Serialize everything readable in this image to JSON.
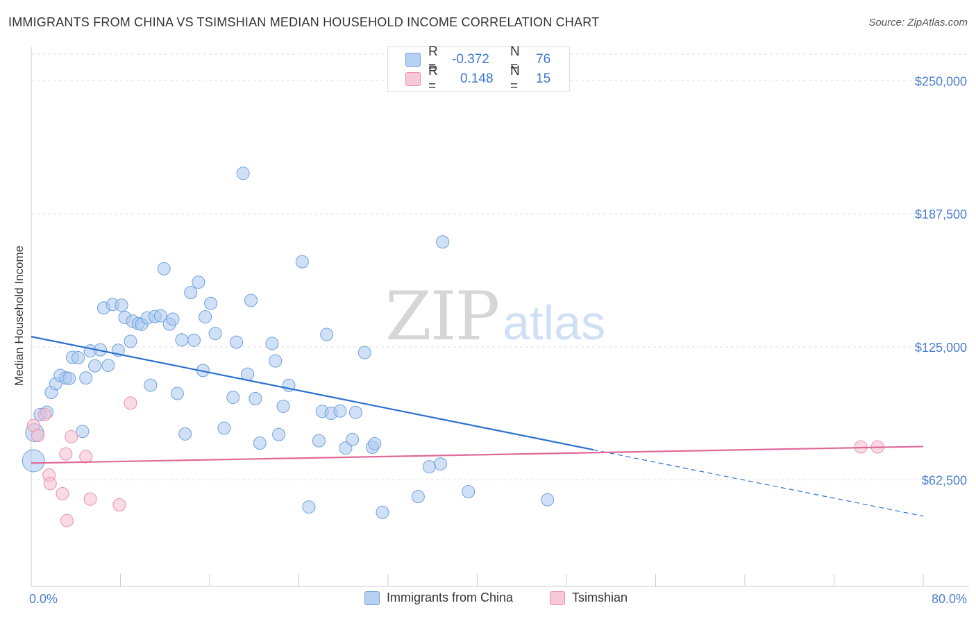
{
  "header": {
    "title": "IMMIGRANTS FROM CHINA VS TSIMSHIAN MEDIAN HOUSEHOLD INCOME CORRELATION CHART",
    "source": "Source: ZipAtlas.com"
  },
  "watermark": {
    "zip": "ZIP",
    "atlas": "atlas"
  },
  "legend_top": {
    "rows": [
      {
        "r_label": "R =",
        "r_value": "-0.372",
        "n_label": "N =",
        "n_value": "76"
      },
      {
        "r_label": "R =",
        "r_value": "0.148",
        "n_label": "N =",
        "n_value": "15"
      }
    ]
  },
  "legend_bottom": {
    "items": [
      {
        "label": "Immigrants from China"
      },
      {
        "label": "Tsimshian"
      }
    ]
  },
  "colors": {
    "china_fill": "#a9c8f0",
    "china_stroke": "#6fa0dd",
    "china_line": "#2a6fcf",
    "tsim_fill": "#f6bdd0",
    "tsim_stroke": "#ea8fae",
    "tsim_line": "#e0699a",
    "tick": "#4a7fd0",
    "grid": "#dddddd"
  },
  "chart_data": {
    "type": "scatter",
    "title": "IMMIGRANTS FROM CHINA VS TSIMSHIAN MEDIAN HOUSEHOLD INCOME CORRELATION CHART",
    "xlabel": "",
    "ylabel": "Median Household Income",
    "xlim": [
      0,
      80
    ],
    "ylim": [
      12500,
      262500
    ],
    "x_tick_labels": [
      "0.0%",
      "80.0%"
    ],
    "y_ticks": [
      62500,
      125000,
      187500,
      250000
    ],
    "y_tick_labels": [
      "$62,500",
      "$125,000",
      "$187,500",
      "$250,000"
    ],
    "grid": true,
    "legend_placement": "top-center",
    "series": [
      {
        "name": "Immigrants from China",
        "r": -0.372,
        "n": 76,
        "trend": {
          "x0": 0,
          "y0": 129800,
          "x1": 80,
          "y1": 45500,
          "solid_until_x": 50.4
        },
        "points": [
          {
            "x": 0.2,
            "y": 71500,
            "s": 3
          },
          {
            "x": 0.3,
            "y": 84700,
            "s": 2
          },
          {
            "x": 0.8,
            "y": 93200
          },
          {
            "x": 1.4,
            "y": 94300
          },
          {
            "x": 1.8,
            "y": 103600
          },
          {
            "x": 2.2,
            "y": 107700
          },
          {
            "x": 2.6,
            "y": 111600
          },
          {
            "x": 3.1,
            "y": 110400
          },
          {
            "x": 3.4,
            "y": 110200
          },
          {
            "x": 3.7,
            "y": 120100
          },
          {
            "x": 4.2,
            "y": 119900
          },
          {
            "x": 4.6,
            "y": 85300
          },
          {
            "x": 4.9,
            "y": 110400
          },
          {
            "x": 5.3,
            "y": 123100
          },
          {
            "x": 5.7,
            "y": 116100
          },
          {
            "x": 6.2,
            "y": 123600
          },
          {
            "x": 6.5,
            "y": 143300
          },
          {
            "x": 6.9,
            "y": 116300
          },
          {
            "x": 7.3,
            "y": 144900
          },
          {
            "x": 7.8,
            "y": 123400
          },
          {
            "x": 8.1,
            "y": 144600
          },
          {
            "x": 8.4,
            "y": 138800
          },
          {
            "x": 8.9,
            "y": 127600
          },
          {
            "x": 9.1,
            "y": 137100
          },
          {
            "x": 9.6,
            "y": 135900
          },
          {
            "x": 9.9,
            "y": 135600
          },
          {
            "x": 10.4,
            "y": 138600
          },
          {
            "x": 10.7,
            "y": 107000
          },
          {
            "x": 11.1,
            "y": 139300
          },
          {
            "x": 11.6,
            "y": 139600
          },
          {
            "x": 11.9,
            "y": 161700
          },
          {
            "x": 12.4,
            "y": 135700
          },
          {
            "x": 12.7,
            "y": 138000
          },
          {
            "x": 13.1,
            "y": 103100
          },
          {
            "x": 13.5,
            "y": 128300
          },
          {
            "x": 13.8,
            "y": 84100
          },
          {
            "x": 14.3,
            "y": 150500
          },
          {
            "x": 14.6,
            "y": 128100
          },
          {
            "x": 15.0,
            "y": 155400
          },
          {
            "x": 15.4,
            "y": 113900
          },
          {
            "x": 15.6,
            "y": 139100
          },
          {
            "x": 16.1,
            "y": 145400
          },
          {
            "x": 16.5,
            "y": 131300
          },
          {
            "x": 17.3,
            "y": 86800
          },
          {
            "x": 18.1,
            "y": 101300
          },
          {
            "x": 18.4,
            "y": 127200
          },
          {
            "x": 19.0,
            "y": 206500
          },
          {
            "x": 19.4,
            "y": 112200
          },
          {
            "x": 19.7,
            "y": 146800
          },
          {
            "x": 20.1,
            "y": 100700
          },
          {
            "x": 20.5,
            "y": 79800
          },
          {
            "x": 21.6,
            "y": 126600
          },
          {
            "x": 21.9,
            "y": 118400
          },
          {
            "x": 22.2,
            "y": 83800
          },
          {
            "x": 22.6,
            "y": 97100
          },
          {
            "x": 23.1,
            "y": 106900
          },
          {
            "x": 24.3,
            "y": 165000
          },
          {
            "x": 24.9,
            "y": 49800
          },
          {
            "x": 25.8,
            "y": 80900
          },
          {
            "x": 26.1,
            "y": 94700
          },
          {
            "x": 26.5,
            "y": 130800
          },
          {
            "x": 26.9,
            "y": 93800
          },
          {
            "x": 27.7,
            "y": 94900
          },
          {
            "x": 28.2,
            "y": 77500
          },
          {
            "x": 28.8,
            "y": 81500
          },
          {
            "x": 29.1,
            "y": 94200
          },
          {
            "x": 29.9,
            "y": 122300
          },
          {
            "x": 30.6,
            "y": 77900
          },
          {
            "x": 30.8,
            "y": 79500
          },
          {
            "x": 31.5,
            "y": 47300
          },
          {
            "x": 34.7,
            "y": 54700
          },
          {
            "x": 35.7,
            "y": 68700
          },
          {
            "x": 36.7,
            "y": 70000
          },
          {
            "x": 36.9,
            "y": 174300
          },
          {
            "x": 39.2,
            "y": 57000
          },
          {
            "x": 46.3,
            "y": 53200
          }
        ]
      },
      {
        "name": "Tsimshian",
        "r": 0.148,
        "n": 15,
        "trend": {
          "x0": 0,
          "y0": 70400,
          "x1": 80,
          "y1": 78200
        },
        "points": [
          {
            "x": 0.2,
            "y": 88100
          },
          {
            "x": 0.6,
            "y": 83400
          },
          {
            "x": 1.2,
            "y": 93200
          },
          {
            "x": 1.6,
            "y": 64800
          },
          {
            "x": 1.7,
            "y": 60800
          },
          {
            "x": 2.8,
            "y": 56000
          },
          {
            "x": 3.2,
            "y": 43400
          },
          {
            "x": 3.1,
            "y": 74700
          },
          {
            "x": 3.6,
            "y": 82800
          },
          {
            "x": 4.9,
            "y": 73500
          },
          {
            "x": 5.3,
            "y": 53500
          },
          {
            "x": 7.9,
            "y": 50800
          },
          {
            "x": 8.9,
            "y": 98600
          },
          {
            "x": 74.4,
            "y": 78000
          },
          {
            "x": 75.9,
            "y": 78000
          }
        ]
      }
    ]
  }
}
